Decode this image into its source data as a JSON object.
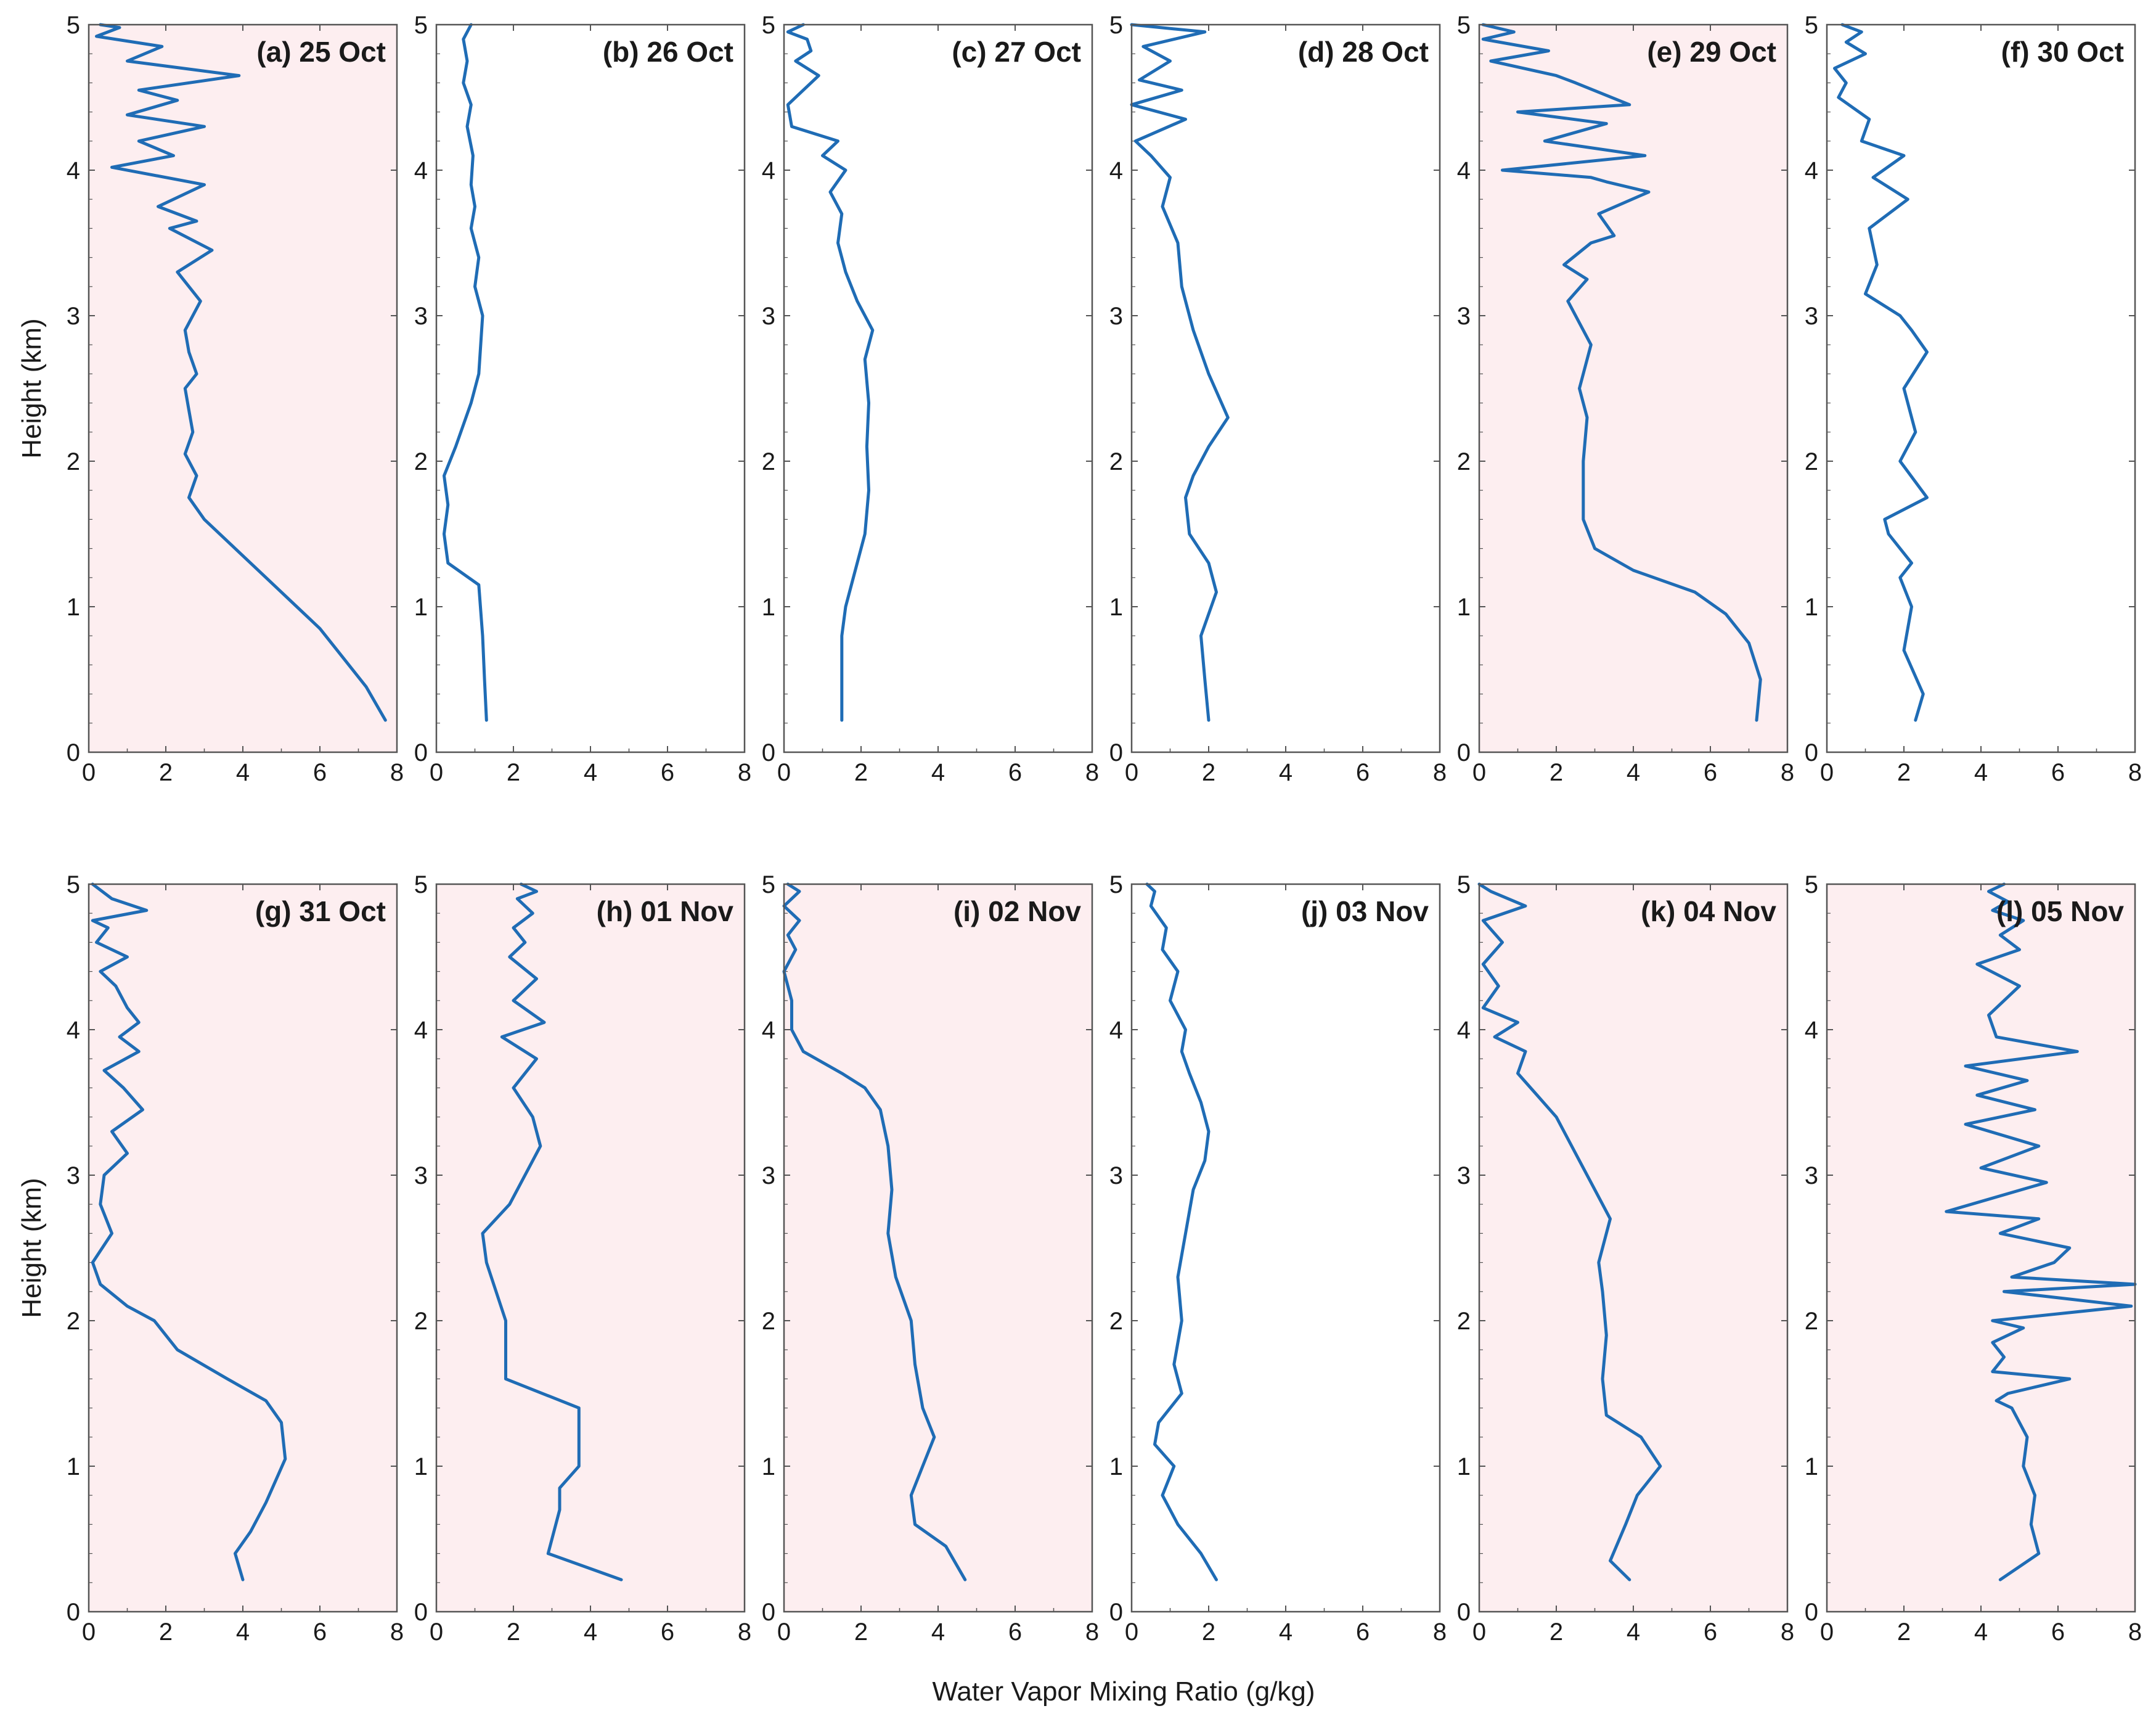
{
  "figure": {
    "xlabel": "Water Vapor Mixing Ratio (g/kg)",
    "ylabel": "Height (km)"
  },
  "colors": {
    "line": "#1f6cb5",
    "shaded_panel": "#fdeef0",
    "plain_panel": "#ffffff",
    "frame": "#555555"
  },
  "chart_data": [
    {
      "type": "line",
      "title": "(a) 25 Oct",
      "shaded": true,
      "xlim": [
        0,
        8
      ],
      "ylim": [
        0,
        5
      ],
      "xticks": [
        "0",
        "2",
        "4",
        "6",
        "8"
      ],
      "yticks": [
        "0",
        "1",
        "2",
        "3",
        "4",
        "5"
      ],
      "x": [
        7.7,
        7.2,
        6.6,
        6.0,
        5.4,
        4.8,
        4.2,
        3.6,
        3.0,
        2.6,
        2.8,
        2.5,
        2.7,
        2.6,
        2.5,
        2.8,
        2.6,
        2.5,
        2.9,
        2.3,
        3.2,
        2.1,
        2.8,
        1.8,
        3.0,
        0.6,
        2.2,
        1.3,
        3.0,
        1.0,
        2.3,
        1.3,
        3.9,
        1.0,
        1.9,
        0.2,
        0.8,
        0.3
      ],
      "y": [
        0.22,
        0.45,
        0.65,
        0.85,
        1.0,
        1.15,
        1.3,
        1.45,
        1.6,
        1.75,
        1.9,
        2.05,
        2.2,
        2.35,
        2.5,
        2.6,
        2.75,
        2.9,
        3.1,
        3.3,
        3.45,
        3.6,
        3.65,
        3.75,
        3.9,
        4.02,
        4.1,
        4.2,
        4.3,
        4.38,
        4.48,
        4.55,
        4.65,
        4.75,
        4.85,
        4.92,
        4.98,
        5.0
      ]
    },
    {
      "type": "line",
      "title": "(b) 26 Oct",
      "shaded": false,
      "xlim": [
        0,
        8
      ],
      "ylim": [
        0,
        5
      ],
      "xticks": [
        "0",
        "2",
        "4",
        "6",
        "8"
      ],
      "yticks": [
        "0",
        "1",
        "2",
        "3",
        "4",
        "5"
      ],
      "x": [
        1.3,
        1.25,
        1.2,
        1.1,
        0.3,
        0.2,
        0.3,
        0.2,
        0.5,
        0.9,
        1.1,
        1.15,
        1.2,
        1.0,
        1.1,
        0.9,
        1.0,
        0.9,
        0.95,
        0.8,
        0.9,
        0.7,
        0.8,
        0.7,
        0.9
      ],
      "y": [
        0.22,
        0.5,
        0.8,
        1.15,
        1.3,
        1.5,
        1.7,
        1.9,
        2.1,
        2.4,
        2.6,
        2.8,
        3.0,
        3.2,
        3.4,
        3.6,
        3.75,
        3.9,
        4.1,
        4.3,
        4.45,
        4.6,
        4.75,
        4.9,
        5.0
      ]
    },
    {
      "type": "line",
      "title": "(c) 27 Oct",
      "shaded": false,
      "xlim": [
        0,
        8
      ],
      "ylim": [
        0,
        5
      ],
      "xticks": [
        "0",
        "2",
        "4",
        "6",
        "8"
      ],
      "yticks": [
        "0",
        "1",
        "2",
        "3",
        "4",
        "5"
      ],
      "x": [
        1.5,
        1.5,
        1.5,
        1.6,
        1.8,
        2.1,
        2.2,
        2.15,
        2.2,
        2.1,
        2.3,
        1.9,
        1.6,
        1.4,
        1.5,
        1.2,
        1.6,
        1.0,
        1.4,
        0.2,
        0.1,
        0.5,
        0.9,
        0.3,
        0.7,
        0.6,
        0.1,
        0.5
      ],
      "y": [
        0.22,
        0.5,
        0.8,
        1.0,
        1.2,
        1.5,
        1.8,
        2.1,
        2.4,
        2.7,
        2.9,
        3.1,
        3.3,
        3.5,
        3.7,
        3.85,
        4.0,
        4.1,
        4.2,
        4.3,
        4.45,
        4.55,
        4.65,
        4.75,
        4.82,
        4.9,
        4.95,
        5.0
      ]
    },
    {
      "type": "line",
      "title": "(d) 28 Oct",
      "shaded": false,
      "xlim": [
        0,
        8
      ],
      "ylim": [
        0,
        5
      ],
      "xticks": [
        "0",
        "2",
        "4",
        "6",
        "8"
      ],
      "yticks": [
        "0",
        "1",
        "2",
        "3",
        "4",
        "5"
      ],
      "x": [
        2.0,
        1.9,
        1.8,
        2.2,
        2.0,
        1.5,
        1.4,
        1.6,
        2.0,
        2.5,
        2.0,
        1.6,
        1.3,
        1.2,
        0.8,
        1.0,
        0.5,
        0.1,
        1.4,
        0.0,
        1.3,
        0.2,
        1.0,
        0.3,
        1.9,
        0.0
      ],
      "y": [
        0.22,
        0.5,
        0.8,
        1.1,
        1.3,
        1.5,
        1.75,
        1.9,
        2.1,
        2.3,
        2.6,
        2.9,
        3.2,
        3.5,
        3.75,
        3.95,
        4.1,
        4.2,
        4.35,
        4.45,
        4.55,
        4.62,
        4.75,
        4.85,
        4.95,
        5.0
      ]
    },
    {
      "type": "line",
      "title": "(e) 29 Oct",
      "shaded": true,
      "xlim": [
        0,
        8
      ],
      "ylim": [
        0,
        5
      ],
      "xticks": [
        "0",
        "2",
        "4",
        "6",
        "8"
      ],
      "yticks": [
        "0",
        "1",
        "2",
        "3",
        "4",
        "5"
      ],
      "x": [
        7.2,
        7.3,
        7.0,
        6.4,
        5.6,
        4.0,
        3.0,
        2.7,
        2.7,
        2.8,
        2.6,
        2.9,
        2.3,
        2.8,
        2.2,
        2.9,
        3.5,
        3.1,
        4.4,
        3.3,
        2.9,
        0.6,
        4.3,
        1.7,
        3.3,
        1.0,
        3.9,
        2.5,
        2.0,
        0.3,
        1.8,
        0.1,
        0.9,
        0.1
      ],
      "y": [
        0.22,
        0.5,
        0.75,
        0.95,
        1.1,
        1.25,
        1.4,
        1.6,
        2.0,
        2.3,
        2.5,
        2.8,
        3.1,
        3.25,
        3.35,
        3.5,
        3.55,
        3.7,
        3.85,
        3.92,
        3.95,
        4.0,
        4.1,
        4.2,
        4.32,
        4.4,
        4.45,
        4.6,
        4.65,
        4.75,
        4.82,
        4.9,
        4.95,
        5.0
      ]
    },
    {
      "type": "line",
      "title": "(f) 30 Oct",
      "shaded": false,
      "xlim": [
        0,
        8
      ],
      "ylim": [
        0,
        5
      ],
      "xticks": [
        "0",
        "2",
        "4",
        "6",
        "8"
      ],
      "yticks": [
        "0",
        "1",
        "2",
        "3",
        "4",
        "5"
      ],
      "x": [
        2.3,
        2.5,
        2.0,
        2.2,
        1.9,
        2.2,
        1.6,
        1.5,
        2.6,
        1.9,
        2.3,
        2.0,
        2.6,
        2.2,
        1.9,
        1.0,
        1.3,
        1.1,
        2.1,
        1.2,
        2.0,
        0.9,
        1.1,
        0.3,
        0.5,
        0.2,
        1.0,
        0.5,
        0.9,
        0.4
      ],
      "y": [
        0.22,
        0.4,
        0.7,
        1.0,
        1.2,
        1.3,
        1.5,
        1.6,
        1.75,
        2.0,
        2.2,
        2.5,
        2.75,
        2.9,
        3.0,
        3.15,
        3.35,
        3.6,
        3.8,
        3.95,
        4.1,
        4.2,
        4.35,
        4.5,
        4.6,
        4.7,
        4.8,
        4.88,
        4.95,
        5.0
      ]
    },
    {
      "type": "line",
      "title": "(g) 31 Oct",
      "shaded": true,
      "xlim": [
        0,
        8
      ],
      "ylim": [
        0,
        5
      ],
      "xticks": [
        "0",
        "2",
        "4",
        "6",
        "8"
      ],
      "yticks": [
        "0",
        "1",
        "2",
        "3",
        "4",
        "5"
      ],
      "x": [
        4.0,
        3.8,
        4.2,
        4.6,
        5.1,
        5.0,
        4.6,
        3.6,
        2.3,
        1.7,
        1.0,
        0.3,
        0.1,
        0.6,
        0.3,
        0.4,
        1.0,
        0.6,
        1.4,
        0.9,
        0.4,
        1.3,
        0.8,
        1.3,
        1.0,
        0.7,
        0.3,
        1.0,
        0.2,
        0.5,
        0.1,
        1.5,
        0.6,
        0.1
      ],
      "y": [
        0.22,
        0.4,
        0.55,
        0.75,
        1.05,
        1.3,
        1.45,
        1.6,
        1.8,
        2.0,
        2.1,
        2.25,
        2.4,
        2.6,
        2.8,
        3.0,
        3.15,
        3.3,
        3.45,
        3.6,
        3.72,
        3.85,
        3.95,
        4.05,
        4.15,
        4.3,
        4.4,
        4.5,
        4.6,
        4.7,
        4.75,
        4.82,
        4.9,
        5.0
      ]
    },
    {
      "type": "line",
      "title": "(h) 01 Nov",
      "shaded": true,
      "xlim": [
        0,
        8
      ],
      "ylim": [
        0,
        5
      ],
      "xticks": [
        "0",
        "2",
        "4",
        "6",
        "8"
      ],
      "yticks": [
        "0",
        "1",
        "2",
        "3",
        "4",
        "5"
      ],
      "x": [
        4.8,
        2.9,
        3.2,
        3.2,
        3.7,
        3.7,
        3.7,
        1.8,
        1.8,
        1.3,
        1.2,
        1.9,
        2.3,
        2.7,
        2.5,
        2.0,
        2.6,
        1.7,
        2.8,
        2.0,
        2.6,
        1.9,
        2.3,
        2.0,
        2.5,
        2.1,
        2.6,
        2.2
      ],
      "y": [
        0.22,
        0.4,
        0.7,
        0.85,
        1.0,
        1.2,
        1.4,
        1.6,
        2.0,
        2.4,
        2.6,
        2.8,
        3.0,
        3.2,
        3.4,
        3.6,
        3.8,
        3.95,
        4.05,
        4.2,
        4.35,
        4.5,
        4.6,
        4.7,
        4.8,
        4.9,
        4.95,
        5.0
      ]
    },
    {
      "type": "line",
      "title": "(i) 02 Nov",
      "shaded": true,
      "xlim": [
        0,
        8
      ],
      "ylim": [
        0,
        5
      ],
      "xticks": [
        "0",
        "2",
        "4",
        "6",
        "8"
      ],
      "yticks": [
        "0",
        "1",
        "2",
        "3",
        "4",
        "5"
      ],
      "x": [
        4.7,
        4.2,
        3.4,
        3.3,
        3.6,
        3.9,
        3.6,
        3.4,
        3.3,
        2.9,
        2.7,
        2.8,
        2.7,
        2.5,
        2.1,
        1.5,
        0.5,
        0.2,
        0.2,
        0.0,
        0.3,
        0.1,
        0.4,
        0.0,
        0.4,
        0.1
      ],
      "y": [
        0.22,
        0.45,
        0.6,
        0.8,
        1.0,
        1.2,
        1.4,
        1.7,
        2.0,
        2.3,
        2.6,
        2.9,
        3.2,
        3.45,
        3.6,
        3.7,
        3.85,
        4.0,
        4.2,
        4.4,
        4.55,
        4.65,
        4.75,
        4.85,
        4.95,
        5.0
      ]
    },
    {
      "type": "line",
      "title": "(j) 03 Nov",
      "shaded": false,
      "xlim": [
        0,
        8
      ],
      "ylim": [
        0,
        5
      ],
      "xticks": [
        "0",
        "2",
        "4",
        "6",
        "8"
      ],
      "yticks": [
        "0",
        "1",
        "2",
        "3",
        "4",
        "5"
      ],
      "x": [
        2.2,
        1.8,
        1.2,
        0.8,
        1.1,
        0.6,
        0.7,
        1.3,
        1.1,
        1.3,
        1.2,
        1.4,
        1.6,
        1.9,
        2.0,
        1.8,
        1.5,
        1.3,
        1.4,
        1.0,
        1.2,
        0.8,
        0.9,
        0.5,
        0.6,
        0.4
      ],
      "y": [
        0.22,
        0.4,
        0.6,
        0.8,
        1.0,
        1.15,
        1.3,
        1.5,
        1.7,
        2.0,
        2.3,
        2.6,
        2.9,
        3.1,
        3.3,
        3.5,
        3.7,
        3.85,
        4.0,
        4.2,
        4.4,
        4.55,
        4.7,
        4.85,
        4.95,
        5.0
      ]
    },
    {
      "type": "line",
      "title": "(k) 04 Nov",
      "shaded": true,
      "xlim": [
        0,
        8
      ],
      "ylim": [
        0,
        5
      ],
      "xticks": [
        "0",
        "2",
        "4",
        "6",
        "8"
      ],
      "yticks": [
        "0",
        "1",
        "2",
        "3",
        "4",
        "5"
      ],
      "x": [
        3.9,
        3.4,
        3.8,
        4.1,
        4.7,
        4.2,
        3.3,
        3.2,
        3.3,
        3.2,
        3.1,
        3.4,
        3.0,
        2.6,
        2.0,
        1.5,
        1.0,
        1.2,
        0.4,
        1.0,
        0.1,
        0.5,
        0.1,
        0.6,
        0.1,
        1.2,
        0.3,
        0.0
      ],
      "y": [
        0.22,
        0.35,
        0.6,
        0.8,
        1.0,
        1.2,
        1.35,
        1.6,
        1.9,
        2.2,
        2.4,
        2.7,
        2.9,
        3.1,
        3.4,
        3.55,
        3.7,
        3.85,
        3.95,
        4.05,
        4.15,
        4.3,
        4.45,
        4.6,
        4.75,
        4.85,
        4.95,
        5.0
      ]
    },
    {
      "type": "line",
      "title": "(l) 05 Nov",
      "shaded": true,
      "xlim": [
        0,
        8
      ],
      "ylim": [
        0,
        5
      ],
      "xticks": [
        "0",
        "2",
        "4",
        "6",
        "8"
      ],
      "yticks": [
        "0",
        "1",
        "2",
        "3",
        "4",
        "5"
      ],
      "x": [
        4.5,
        5.5,
        5.3,
        5.4,
        5.1,
        5.2,
        4.8,
        4.4,
        4.7,
        6.3,
        4.3,
        4.6,
        4.3,
        5.1,
        4.3,
        7.9,
        4.6,
        8.0,
        4.8,
        5.9,
        6.3,
        4.5,
        5.5,
        3.1,
        5.7,
        4.0,
        5.5,
        3.6,
        5.4,
        3.9,
        5.2,
        3.6,
        6.5,
        4.4,
        4.2,
        5.0,
        3.9,
        5.0,
        4.5,
        5.1,
        4.3,
        4.7,
        4.2,
        4.6
      ],
      "y": [
        0.22,
        0.4,
        0.6,
        0.8,
        1.0,
        1.2,
        1.4,
        1.45,
        1.5,
        1.6,
        1.65,
        1.75,
        1.85,
        1.95,
        2.0,
        2.1,
        2.2,
        2.25,
        2.3,
        2.4,
        2.5,
        2.6,
        2.7,
        2.75,
        2.95,
        3.05,
        3.2,
        3.35,
        3.45,
        3.55,
        3.65,
        3.75,
        3.85,
        3.95,
        4.1,
        4.3,
        4.45,
        4.55,
        4.65,
        4.75,
        4.82,
        4.88,
        4.95,
        5.0
      ]
    }
  ]
}
